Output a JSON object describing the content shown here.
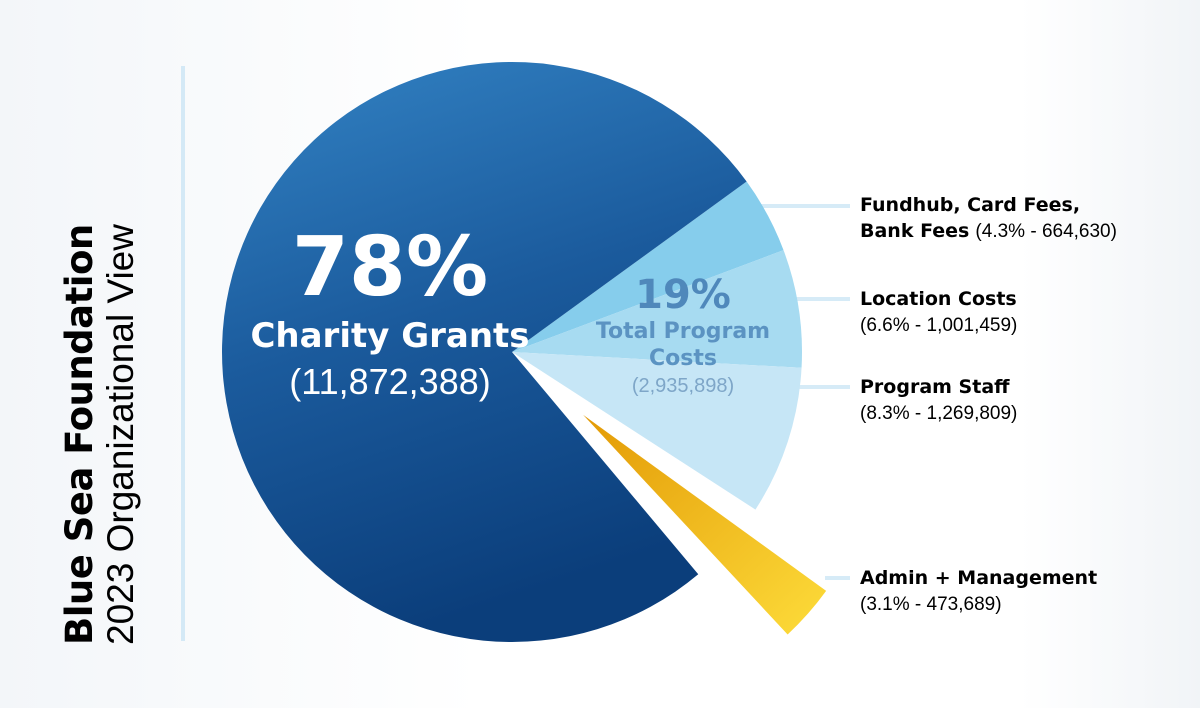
{
  "title": "Blue Sea Foundation",
  "subtitle": "2023 Organizational View",
  "chart_data": {
    "type": "pie",
    "title": "Blue Sea Foundation 2023 Organizational View",
    "slices": [
      {
        "name": "Charity Grants",
        "percent_label": "78%",
        "percent": 78,
        "value": 11872388,
        "value_label": "(11,872,388)",
        "color": "#1d5d9f"
      },
      {
        "name": "Fundhub, Card Fees, Bank Fees",
        "name_line1": "Fundhub, Card Fees,",
        "name_line2": "Bank Fees",
        "percent": 4.3,
        "value": 664630,
        "detail_label": "(4.3% - 664,630)",
        "color": "#86cdec",
        "group": "Total Program Costs"
      },
      {
        "name": "Location Costs",
        "percent": 6.6,
        "value": 1001459,
        "detail_label": "(6.6% - 1,001,459)",
        "color": "#a7dbf1",
        "group": "Total Program Costs"
      },
      {
        "name": "Program Staff",
        "percent": 8.3,
        "value": 1269809,
        "detail_label": "(8.3% - 1,269,809)",
        "color": "#c6e6f6",
        "group": "Total Program Costs"
      },
      {
        "name": "Admin + Management",
        "percent": 3.1,
        "value": 473689,
        "detail_label": "(3.1% - 473,689)",
        "color": "#f5b915",
        "exploded": true
      }
    ],
    "group": {
      "name_line1": "Total Program",
      "name_line2": "Costs",
      "percent_label": "19%",
      "value_label": "(2,935,898)"
    }
  }
}
